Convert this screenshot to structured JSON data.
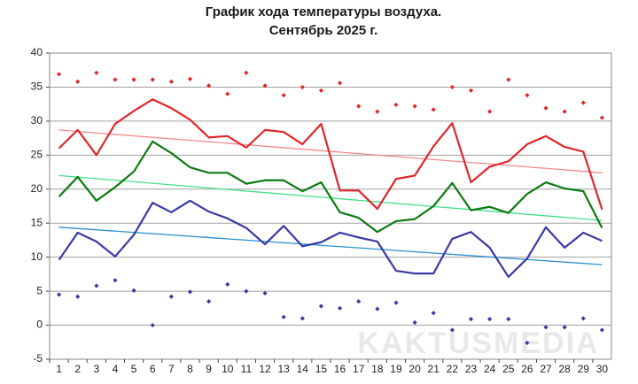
{
  "chart_data": {
    "type": "line",
    "title": "График хода температуры воздуха.",
    "subtitle": "Сентябрь 2025 г.",
    "watermark": "KAKTUSMEDIA",
    "categories": [
      1,
      2,
      3,
      4,
      5,
      6,
      7,
      8,
      9,
      10,
      11,
      12,
      13,
      14,
      15,
      16,
      17,
      18,
      19,
      20,
      21,
      22,
      23,
      24,
      25,
      26,
      27,
      28,
      29,
      30
    ],
    "ylim": [
      -5,
      40
    ],
    "yticks": [
      -5,
      0,
      5,
      10,
      15,
      20,
      25,
      30,
      35,
      40
    ],
    "grid": true,
    "series": [
      {
        "style": "line",
        "color": "#e0262a",
        "values": [
          26,
          28.7,
          25,
          29.6,
          31.5,
          33.2,
          31.9,
          30.2,
          27.6,
          27.8,
          26.1,
          28.7,
          28.4,
          26.6,
          29.6,
          19.8,
          19.8,
          17.1,
          21.5,
          22,
          26.3,
          29.7,
          21,
          23.3,
          24.1,
          26.6,
          27.8,
          26.2,
          25.5,
          17
        ]
      },
      {
        "style": "line",
        "color": "#0d7a12",
        "values": [
          18.9,
          21.8,
          18.3,
          20.3,
          22.6,
          27,
          25.3,
          23.2,
          22.4,
          22.4,
          20.8,
          21.3,
          21.3,
          19.7,
          21,
          16.6,
          15.8,
          13.7,
          15.3,
          15.6,
          17.5,
          20.9,
          16.9,
          17.4,
          16.5,
          19.3,
          21,
          20.1,
          19.7,
          14.3
        ]
      },
      {
        "style": "line",
        "color": "#3a3aa6",
        "values": [
          9.6,
          13.6,
          12.3,
          10.1,
          13.3,
          18,
          16.6,
          18.3,
          16.7,
          15.7,
          14.3,
          11.9,
          14.6,
          11.6,
          12.2,
          13.6,
          12.9,
          12.3,
          8,
          7.6,
          7.6,
          12.7,
          13.7,
          11.4,
          7.1,
          9.8,
          14.4,
          11.4,
          13.6,
          12.4
        ]
      },
      {
        "style": "markers",
        "color": "#e0262a",
        "values": [
          36.9,
          35.8,
          37.1,
          36.1,
          36.1,
          36.1,
          35.8,
          36.2,
          35.2,
          34,
          37.1,
          35.2,
          33.8,
          35,
          34.5,
          35.6,
          32.2,
          31.4,
          32.4,
          32.2,
          31.7,
          35,
          34.5,
          31.4,
          36.1,
          33.8,
          31.9,
          31.4,
          32.7,
          30.5
        ]
      },
      {
        "style": "markers",
        "color": "#3a3aa6",
        "values": [
          4.5,
          4.2,
          5.8,
          6.6,
          5.1,
          0,
          4.2,
          4.9,
          3.5,
          6,
          5,
          4.7,
          1.2,
          1,
          2.8,
          2.5,
          3.5,
          2.4,
          3.3,
          0.4,
          1.8,
          -0.7,
          0.9,
          0.9,
          0.9,
          -2.6,
          -0.3,
          -0.3,
          1,
          -0.7
        ]
      }
    ],
    "trendlines": [
      {
        "color": "#f08a8a",
        "x": [
          1,
          30
        ],
        "values": [
          28.7,
          22.4
        ]
      },
      {
        "color": "#3fe08a",
        "x": [
          1,
          30
        ],
        "values": [
          22,
          15.4
        ]
      },
      {
        "color": "#2a8fd0",
        "x": [
          1,
          30
        ],
        "values": [
          14.4,
          8.9
        ]
      }
    ]
  }
}
